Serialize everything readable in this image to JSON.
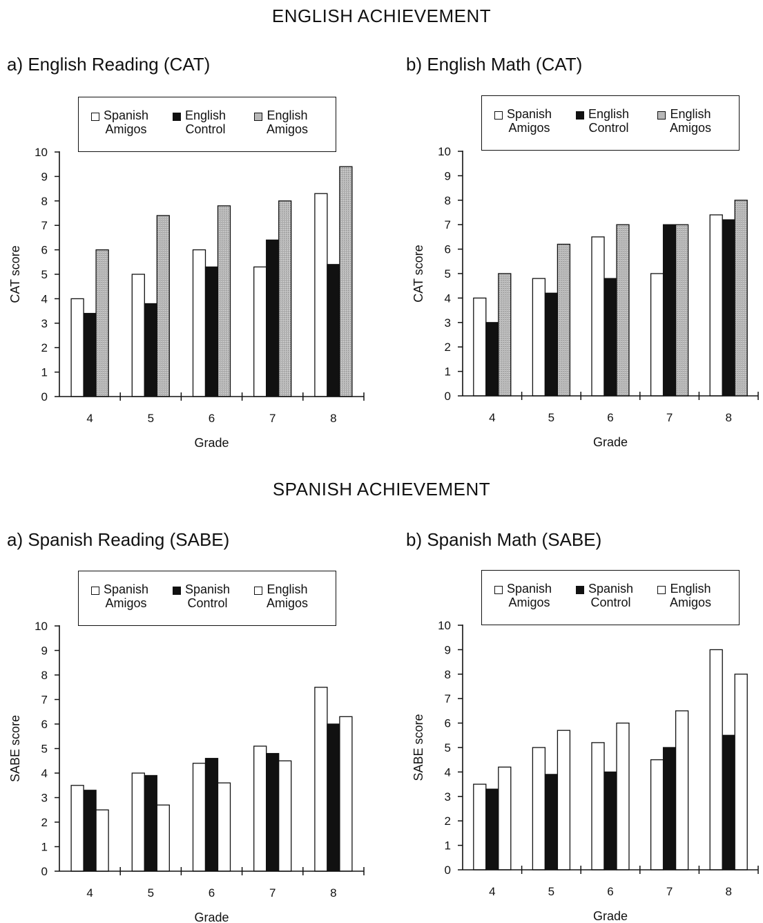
{
  "page": {
    "english_title": "ENGLISH ACHIEVEMENT",
    "spanish_title": "SPANISH ACHIEVEMENT"
  },
  "colors": {
    "white": "#ffffff",
    "black": "#111111",
    "gray": "#b8b8b8"
  },
  "chart_data": [
    {
      "type": "bar",
      "title": "a) English Reading (CAT)",
      "xlabel": "Grade",
      "ylabel": "CAT score",
      "ylim": [
        0,
        10
      ],
      "yticks": [
        "0",
        "1",
        "2",
        "3",
        "4",
        "5",
        "6",
        "7",
        "8",
        "9",
        "10"
      ],
      "categories": [
        "4",
        "5",
        "6",
        "7",
        "8"
      ],
      "legend_position": "top",
      "series": [
        {
          "name": "Spanish Amigos",
          "name_lines": [
            "Spanish",
            "Amigos"
          ],
          "fill": "white",
          "values": [
            4.0,
            5.0,
            6.0,
            5.3,
            8.3
          ]
        },
        {
          "name": "English Control",
          "name_lines": [
            "English",
            "Control"
          ],
          "fill": "black",
          "values": [
            3.4,
            3.8,
            5.3,
            6.4,
            5.4
          ]
        },
        {
          "name": "English Amigos",
          "name_lines": [
            "English",
            "Amigos"
          ],
          "fill": "gray",
          "values": [
            6.0,
            7.4,
            7.8,
            8.0,
            9.4
          ]
        }
      ]
    },
    {
      "type": "bar",
      "title": "b) English Math (CAT)",
      "xlabel": "Grade",
      "ylabel": "CAT score",
      "ylim": [
        0,
        10
      ],
      "yticks": [
        "0",
        "1",
        "2",
        "3",
        "4",
        "5",
        "6",
        "7",
        "8",
        "9",
        "10"
      ],
      "categories": [
        "4",
        "5",
        "6",
        "7",
        "8"
      ],
      "legend_position": "top",
      "series": [
        {
          "name": "Spanish Amigos",
          "name_lines": [
            "Spanish",
            "Amigos"
          ],
          "fill": "white",
          "values": [
            4.0,
            4.8,
            6.5,
            5.0,
            7.4
          ]
        },
        {
          "name": "English Control",
          "name_lines": [
            "English",
            "Control"
          ],
          "fill": "black",
          "values": [
            3.0,
            4.2,
            4.8,
            7.0,
            7.2
          ]
        },
        {
          "name": "English Amigos",
          "name_lines": [
            "English",
            "Amigos"
          ],
          "fill": "gray",
          "values": [
            5.0,
            6.2,
            7.0,
            7.0,
            8.0
          ]
        }
      ]
    },
    {
      "type": "bar",
      "title": "a) Spanish Reading (SABE)",
      "xlabel": "Grade",
      "ylabel": "SABE score",
      "ylim": [
        0,
        10
      ],
      "yticks": [
        "0",
        "1",
        "2",
        "3",
        "4",
        "5",
        "6",
        "7",
        "8",
        "9",
        "10"
      ],
      "categories": [
        "4",
        "5",
        "6",
        "7",
        "8"
      ],
      "legend_position": "top",
      "series": [
        {
          "name": "Spanish Amigos",
          "name_lines": [
            "Spanish",
            "Amigos"
          ],
          "fill": "white",
          "values": [
            3.5,
            4.0,
            4.4,
            5.1,
            7.5
          ]
        },
        {
          "name": "Spanish Control",
          "name_lines": [
            "Spanish",
            "Control"
          ],
          "fill": "black",
          "values": [
            3.3,
            3.9,
            4.6,
            4.8,
            6.0
          ]
        },
        {
          "name": "English Amigos",
          "name_lines": [
            "English",
            "Amigos"
          ],
          "fill": "white",
          "values": [
            2.5,
            2.7,
            3.6,
            4.5,
            6.3
          ]
        }
      ]
    },
    {
      "type": "bar",
      "title": "b) Spanish Math (SABE)",
      "xlabel": "Grade",
      "ylabel": "SABE score",
      "ylim": [
        0,
        10
      ],
      "yticks": [
        "0",
        "1",
        "2",
        "3",
        "4",
        "5",
        "6",
        "7",
        "8",
        "9",
        "10"
      ],
      "categories": [
        "4",
        "5",
        "6",
        "7",
        "8"
      ],
      "legend_position": "top",
      "series": [
        {
          "name": "Spanish Amigos",
          "name_lines": [
            "Spanish",
            "Amigos"
          ],
          "fill": "white",
          "values": [
            3.5,
            5.0,
            5.2,
            4.5,
            9.0
          ]
        },
        {
          "name": "Spanish Control",
          "name_lines": [
            "Spanish",
            "Control"
          ],
          "fill": "black",
          "values": [
            3.3,
            3.9,
            4.0,
            5.0,
            5.5
          ]
        },
        {
          "name": "English Amigos",
          "name_lines": [
            "English",
            "Amigos"
          ],
          "fill": "white",
          "values": [
            4.2,
            5.7,
            6.0,
            6.5,
            8.0
          ]
        }
      ]
    }
  ]
}
